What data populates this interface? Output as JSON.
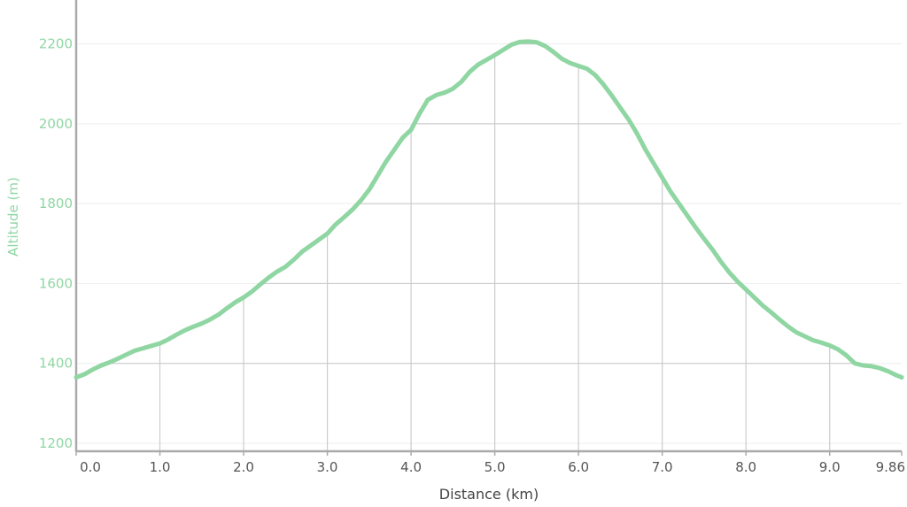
{
  "chart_data": {
    "type": "line",
    "title": "",
    "xlabel": "Distance (km)",
    "ylabel": "Altitude (m)",
    "xlim": [
      0,
      9.86
    ],
    "ylim": [
      1180,
      2310
    ],
    "x_ticks": [
      0.0,
      1.0,
      2.0,
      3.0,
      4.0,
      5.0,
      6.0,
      7.0,
      8.0,
      9.0,
      9.86
    ],
    "x_tick_labels": [
      "0.0",
      "1.0",
      "2.0",
      "3.0",
      "4.0",
      "5.0",
      "6.0",
      "7.0",
      "8.0",
      "9.0",
      "9.86"
    ],
    "y_ticks": [
      1200,
      1400,
      1600,
      1800,
      2000,
      2200
    ],
    "y_tick_labels": [
      "1200",
      "1400",
      "1600",
      "1800",
      "2000",
      "2200"
    ],
    "grid": true,
    "legend": "none",
    "colors": {
      "line": "#8fd6a3",
      "y_text": "#8fd6a3",
      "grid": "#cccccc",
      "axis": "#aaaaaa"
    },
    "series": [
      {
        "x": [
          0.0,
          0.1,
          0.2,
          0.3,
          0.4,
          0.5,
          0.6,
          0.7,
          0.8,
          0.9,
          1.0,
          1.1,
          1.2,
          1.3,
          1.4,
          1.5,
          1.6,
          1.7,
          1.8,
          1.9,
          2.0,
          2.1,
          2.2,
          2.3,
          2.4,
          2.5,
          2.6,
          2.7,
          2.8,
          2.9,
          3.0,
          3.1,
          3.2,
          3.3,
          3.4,
          3.5,
          3.6,
          3.7,
          3.8,
          3.9,
          4.0,
          4.1,
          4.2,
          4.3,
          4.4,
          4.5,
          4.6,
          4.7,
          4.8,
          4.9,
          5.0,
          5.1,
          5.2,
          5.3,
          5.4,
          5.5,
          5.6,
          5.7,
          5.8,
          5.9,
          6.0,
          6.1,
          6.2,
          6.3,
          6.4,
          6.5,
          6.6,
          6.7,
          6.8,
          6.9,
          7.0,
          7.1,
          7.2,
          7.3,
          7.4,
          7.5,
          7.6,
          7.7,
          7.8,
          7.9,
          8.0,
          8.1,
          8.2,
          8.3,
          8.4,
          8.5,
          8.6,
          8.7,
          8.8,
          8.9,
          9.0,
          9.1,
          9.2,
          9.3,
          9.4,
          9.5,
          9.6,
          9.7,
          9.8,
          9.86
        ],
        "y": [
          1365,
          1373,
          1385,
          1395,
          1403,
          1412,
          1422,
          1432,
          1438,
          1444,
          1450,
          1460,
          1472,
          1483,
          1492,
          1500,
          1510,
          1522,
          1538,
          1553,
          1565,
          1580,
          1598,
          1615,
          1630,
          1642,
          1660,
          1680,
          1695,
          1710,
          1725,
          1748,
          1766,
          1785,
          1808,
          1835,
          1870,
          1905,
          1935,
          1965,
          1985,
          2025,
          2060,
          2072,
          2078,
          2088,
          2105,
          2130,
          2148,
          2160,
          2172,
          2185,
          2198,
          2205,
          2206,
          2204,
          2195,
          2180,
          2163,
          2152,
          2145,
          2138,
          2122,
          2098,
          2070,
          2040,
          2010,
          1975,
          1935,
          1900,
          1865,
          1830,
          1800,
          1770,
          1740,
          1712,
          1685,
          1655,
          1628,
          1605,
          1585,
          1565,
          1545,
          1528,
          1510,
          1493,
          1478,
          1468,
          1458,
          1452,
          1445,
          1435,
          1420,
          1400,
          1395,
          1393,
          1388,
          1380,
          1370,
          1365
        ]
      }
    ]
  }
}
